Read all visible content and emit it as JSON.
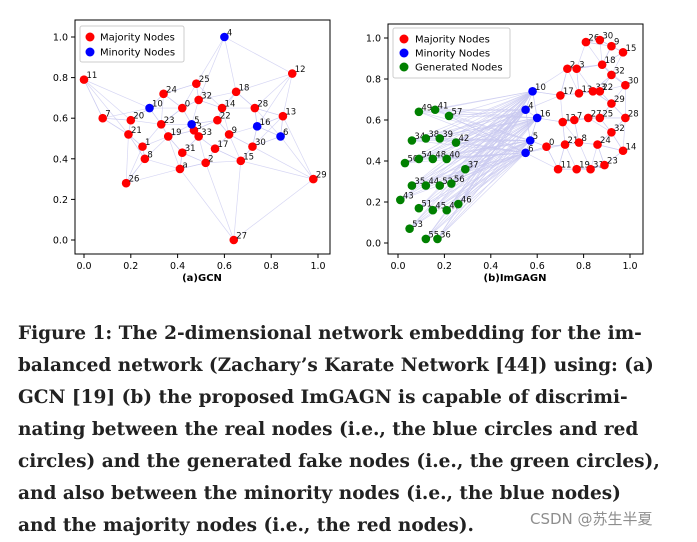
{
  "figure": {
    "panels": [
      {
        "panel_label": "(a)GCN",
        "legend": [
          {
            "label": "Majority Nodes",
            "color": "#ff0000"
          },
          {
            "label": "Minority Nodes",
            "color": "#0000ff"
          }
        ],
        "x_ticks": [
          "0.0",
          "0.2",
          "0.4",
          "0.6",
          "0.8",
          "1.0"
        ],
        "y_ticks": [
          "0.0",
          "0.2",
          "0.4",
          "0.6",
          "0.8",
          "1.0"
        ]
      },
      {
        "panel_label": "(b)ImGAGN",
        "legend": [
          {
            "label": "Majority Nodes",
            "color": "#ff0000"
          },
          {
            "label": "Minority Nodes",
            "color": "#0000ff"
          },
          {
            "label": "Generated Nodes",
            "color": "#008000"
          }
        ],
        "x_ticks": [
          "0.0",
          "0.2",
          "0.4",
          "0.6",
          "0.8",
          "1.0"
        ],
        "y_ticks": [
          "0.0",
          "0.2",
          "0.4",
          "0.6",
          "0.8",
          "1.0"
        ]
      }
    ]
  },
  "chart_data": [
    {
      "type": "scatter",
      "panel_label": "(a)GCN",
      "xlim": [
        0,
        1
      ],
      "ylim": [
        0,
        1
      ],
      "grid": false,
      "legend_position": "top-left",
      "series": [
        {
          "name": "Majority Nodes",
          "color": "#ff0000",
          "points": [
            {
              "id": "0",
              "x": 0.42,
              "y": 0.65
            },
            {
              "id": "1",
              "x": 0.25,
              "y": 0.46
            },
            {
              "id": "2",
              "x": 0.52,
              "y": 0.38
            },
            {
              "id": "3",
              "x": 0.47,
              "y": 0.54
            },
            {
              "id": "7",
              "x": 0.08,
              "y": 0.6
            },
            {
              "id": "8",
              "x": 0.26,
              "y": 0.4
            },
            {
              "id": "9",
              "x": 0.62,
              "y": 0.52
            },
            {
              "id": "11",
              "x": 0.0,
              "y": 0.79
            },
            {
              "id": "12",
              "x": 0.89,
              "y": 0.82
            },
            {
              "id": "13",
              "x": 0.85,
              "y": 0.61
            },
            {
              "id": "14",
              "x": 0.59,
              "y": 0.65
            },
            {
              "id": "15",
              "x": 0.67,
              "y": 0.39
            },
            {
              "id": "17",
              "x": 0.56,
              "y": 0.45
            },
            {
              "id": "18",
              "x": 0.65,
              "y": 0.73
            },
            {
              "id": "19",
              "x": 0.36,
              "y": 0.51
            },
            {
              "id": "20",
              "x": 0.2,
              "y": 0.59
            },
            {
              "id": "21",
              "x": 0.19,
              "y": 0.52
            },
            {
              "id": "22",
              "x": 0.57,
              "y": 0.59
            },
            {
              "id": "23",
              "x": 0.33,
              "y": 0.57
            },
            {
              "id": "24",
              "x": 0.34,
              "y": 0.72
            },
            {
              "id": "25",
              "x": 0.48,
              "y": 0.77
            },
            {
              "id": "26",
              "x": 0.18,
              "y": 0.28
            },
            {
              "id": "27",
              "x": 0.64,
              "y": 0.0
            },
            {
              "id": "28",
              "x": 0.73,
              "y": 0.65
            },
            {
              "id": "29",
              "x": 0.98,
              "y": 0.3
            },
            {
              "id": "30",
              "x": 0.72,
              "y": 0.46
            },
            {
              "id": "31",
              "x": 0.42,
              "y": 0.43
            },
            {
              "id": "32",
              "x": 0.49,
              "y": 0.69
            },
            {
              "id": "33",
              "x": 0.49,
              "y": 0.51
            },
            {
              "id": "a",
              "x": 0.41,
              "y": 0.35
            }
          ]
        },
        {
          "name": "Minority Nodes",
          "color": "#0000ff",
          "points": [
            {
              "id": "4",
              "x": 0.6,
              "y": 1.0
            },
            {
              "id": "5",
              "x": 0.46,
              "y": 0.57
            },
            {
              "id": "6",
              "x": 0.84,
              "y": 0.51
            },
            {
              "id": "10",
              "x": 0.28,
              "y": 0.65
            },
            {
              "id": "16",
              "x": 0.74,
              "y": 0.56
            }
          ]
        }
      ]
    },
    {
      "type": "scatter",
      "panel_label": "(b)ImGAGN",
      "xlim": [
        0,
        1
      ],
      "ylim": [
        0,
        1
      ],
      "grid": false,
      "legend_position": "top-left",
      "series": [
        {
          "name": "Majority Nodes",
          "color": "#ff0000",
          "points": [
            {
              "id": "26",
              "x": 0.81,
              "y": 0.98
            },
            {
              "id": "30",
              "x": 0.87,
              "y": 0.99
            },
            {
              "id": "9",
              "x": 0.92,
              "y": 0.96
            },
            {
              "id": "15",
              "x": 0.97,
              "y": 0.93
            },
            {
              "id": "2",
              "x": 0.73,
              "y": 0.85
            },
            {
              "id": "3",
              "x": 0.77,
              "y": 0.85
            },
            {
              "id": "18",
              "x": 0.88,
              "y": 0.87
            },
            {
              "id": "32",
              "x": 0.92,
              "y": 0.82
            },
            {
              "id": "30",
              "x": 0.98,
              "y": 0.77
            },
            {
              "id": "17",
              "x": 0.7,
              "y": 0.72
            },
            {
              "id": "13",
              "x": 0.78,
              "y": 0.73
            },
            {
              "id": "33",
              "x": 0.84,
              "y": 0.74
            },
            {
              "id": "22",
              "x": 0.87,
              "y": 0.74
            },
            {
              "id": "29",
              "x": 0.92,
              "y": 0.68
            },
            {
              "id": "12",
              "x": 0.71,
              "y": 0.59
            },
            {
              "id": "7",
              "x": 0.76,
              "y": 0.6
            },
            {
              "id": "27",
              "x": 0.82,
              "y": 0.61
            },
            {
              "id": "25",
              "x": 0.87,
              "y": 0.61
            },
            {
              "id": "28",
              "x": 0.98,
              "y": 0.61
            },
            {
              "id": "32",
              "x": 0.92,
              "y": 0.54
            },
            {
              "id": "0",
              "x": 0.64,
              "y": 0.47
            },
            {
              "id": "21",
              "x": 0.72,
              "y": 0.48
            },
            {
              "id": "8",
              "x": 0.78,
              "y": 0.49
            },
            {
              "id": "24",
              "x": 0.86,
              "y": 0.48
            },
            {
              "id": "14",
              "x": 0.97,
              "y": 0.45
            },
            {
              "id": "11",
              "x": 0.69,
              "y": 0.36
            },
            {
              "id": "19",
              "x": 0.77,
              "y": 0.36
            },
            {
              "id": "31",
              "x": 0.83,
              "y": 0.36
            },
            {
              "id": "23",
              "x": 0.89,
              "y": 0.38
            }
          ]
        },
        {
          "name": "Minority Nodes",
          "color": "#0000ff",
          "points": [
            {
              "id": "10",
              "x": 0.58,
              "y": 0.74
            },
            {
              "id": "4",
              "x": 0.55,
              "y": 0.65
            },
            {
              "id": "16",
              "x": 0.6,
              "y": 0.61
            },
            {
              "id": "5",
              "x": 0.57,
              "y": 0.5
            },
            {
              "id": "6",
              "x": 0.55,
              "y": 0.44
            }
          ]
        },
        {
          "name": "Generated Nodes",
          "color": "#008000",
          "points": [
            {
              "id": "49",
              "x": 0.09,
              "y": 0.64
            },
            {
              "id": "41",
              "x": 0.16,
              "y": 0.65
            },
            {
              "id": "57",
              "x": 0.22,
              "y": 0.62
            },
            {
              "id": "34",
              "x": 0.06,
              "y": 0.5
            },
            {
              "id": "38",
              "x": 0.12,
              "y": 0.51
            },
            {
              "id": "39",
              "x": 0.18,
              "y": 0.51
            },
            {
              "id": "42",
              "x": 0.25,
              "y": 0.49
            },
            {
              "id": "50",
              "x": 0.03,
              "y": 0.39
            },
            {
              "id": "54",
              "x": 0.09,
              "y": 0.41
            },
            {
              "id": "48",
              "x": 0.15,
              "y": 0.41
            },
            {
              "id": "40",
              "x": 0.21,
              "y": 0.41
            },
            {
              "id": "37",
              "x": 0.29,
              "y": 0.36
            },
            {
              "id": "35",
              "x": 0.06,
              "y": 0.28
            },
            {
              "id": "44",
              "x": 0.12,
              "y": 0.28
            },
            {
              "id": "52",
              "x": 0.18,
              "y": 0.28
            },
            {
              "id": "56",
              "x": 0.23,
              "y": 0.29
            },
            {
              "id": "43",
              "x": 0.01,
              "y": 0.21
            },
            {
              "id": "51",
              "x": 0.09,
              "y": 0.17
            },
            {
              "id": "45",
              "x": 0.15,
              "y": 0.16
            },
            {
              "id": "47",
              "x": 0.21,
              "y": 0.16
            },
            {
              "id": "46",
              "x": 0.26,
              "y": 0.19
            },
            {
              "id": "53",
              "x": 0.05,
              "y": 0.07
            },
            {
              "id": "55",
              "x": 0.12,
              "y": 0.02
            },
            {
              "id": "36",
              "x": 0.17,
              "y": 0.02
            }
          ]
        }
      ]
    }
  ],
  "caption": {
    "lines": [
      "Figure 1: The 2-dimensional network embedding for the im-",
      "balanced network (Zachary’s Karate Network [44]) using: (a)",
      "GCN [19] (b) the proposed ImGAGN is capable of discrimi-",
      "nating between the real nodes (i.e., the blue circles and red",
      "circles) and the generated fake nodes (i.e., the green circles),",
      "and also between the minority nodes (i.e., the blue nodes)",
      "and the majority nodes (i.e., the red nodes)."
    ]
  },
  "watermark": "CSDN @苏生半夏"
}
